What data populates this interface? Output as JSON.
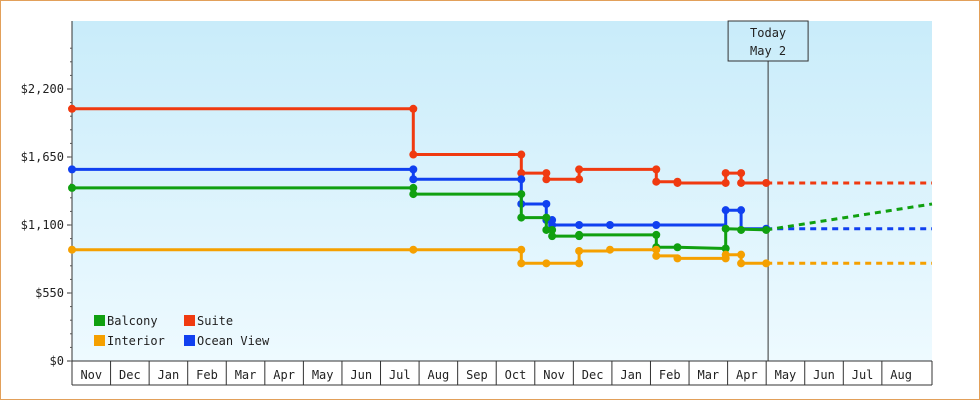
{
  "chart_data": {
    "type": "line",
    "title": "",
    "xlabel": "",
    "ylabel": "",
    "ylim": [
      0,
      2750
    ],
    "y_ticks": [
      0,
      550,
      1100,
      1650,
      2200
    ],
    "y_tick_labels": [
      "$0",
      "$550",
      "$1,100",
      "$1,650",
      "$2,200"
    ],
    "x_domain": [
      0,
      22.3
    ],
    "month_labels": [
      "Nov",
      "Dec",
      "Jan",
      "Feb",
      "Mar",
      "Apr",
      "May",
      "Jun",
      "Jul",
      "Aug",
      "Sep",
      "Oct",
      "Nov",
      "Dec",
      "Jan",
      "Feb",
      "Mar",
      "Apr",
      "May",
      "Jun",
      "Jul",
      "Aug"
    ],
    "today": {
      "line1": "Today",
      "line2": "May 2",
      "x": 18.05
    },
    "background_gradient": [
      "#c9ecfa",
      "#eefaff"
    ],
    "legend_position": "bottom-left",
    "series": [
      {
        "name": "Suite",
        "color": "#f03a10",
        "points": [
          [
            0.0,
            2040
          ],
          [
            8.85,
            2040
          ],
          [
            8.85,
            1670
          ],
          [
            11.65,
            1670
          ],
          [
            11.65,
            1520
          ],
          [
            12.3,
            1520
          ],
          [
            12.3,
            1470
          ],
          [
            13.15,
            1470
          ],
          [
            13.15,
            1550
          ],
          [
            15.15,
            1550
          ],
          [
            15.15,
            1450
          ],
          [
            15.7,
            1450
          ],
          [
            15.7,
            1440
          ],
          [
            16.95,
            1440
          ],
          [
            16.95,
            1520
          ],
          [
            17.35,
            1520
          ],
          [
            17.35,
            1440
          ],
          [
            18.0,
            1440
          ]
        ],
        "markers": [
          [
            0.0,
            2040
          ],
          [
            8.85,
            2040
          ],
          [
            8.85,
            1670
          ],
          [
            11.65,
            1670
          ],
          [
            11.65,
            1520
          ],
          [
            12.3,
            1520
          ],
          [
            12.3,
            1470
          ],
          [
            13.15,
            1470
          ],
          [
            13.15,
            1550
          ],
          [
            15.15,
            1550
          ],
          [
            15.15,
            1450
          ],
          [
            15.7,
            1450
          ],
          [
            15.7,
            1440
          ],
          [
            16.95,
            1440
          ],
          [
            16.95,
            1520
          ],
          [
            17.35,
            1520
          ],
          [
            17.35,
            1440
          ],
          [
            18.0,
            1440
          ]
        ],
        "projection": [
          [
            18.0,
            1440
          ],
          [
            22.3,
            1440
          ]
        ]
      },
      {
        "name": "Ocean View",
        "color": "#1040f0",
        "points": [
          [
            0.0,
            1550
          ],
          [
            8.85,
            1550
          ],
          [
            8.85,
            1470
          ],
          [
            11.65,
            1470
          ],
          [
            11.65,
            1270
          ],
          [
            12.3,
            1270
          ],
          [
            12.3,
            1140
          ],
          [
            12.45,
            1140
          ],
          [
            12.45,
            1100
          ],
          [
            15.15,
            1100
          ],
          [
            15.15,
            1100
          ],
          [
            16.95,
            1100
          ],
          [
            16.95,
            1220
          ],
          [
            17.35,
            1220
          ],
          [
            17.35,
            1070
          ],
          [
            18.0,
            1070
          ]
        ],
        "markers": [
          [
            0.0,
            1550
          ],
          [
            8.85,
            1550
          ],
          [
            8.85,
            1470
          ],
          [
            11.65,
            1470
          ],
          [
            11.65,
            1270
          ],
          [
            12.3,
            1270
          ],
          [
            12.3,
            1140
          ],
          [
            12.45,
            1140
          ],
          [
            12.45,
            1100
          ],
          [
            13.15,
            1100
          ],
          [
            13.95,
            1100
          ],
          [
            15.15,
            1100
          ],
          [
            16.95,
            1220
          ],
          [
            17.35,
            1220
          ],
          [
            18.0,
            1070
          ]
        ],
        "projection": [
          [
            18.0,
            1070
          ],
          [
            22.3,
            1070
          ]
        ]
      },
      {
        "name": "Balcony",
        "color": "#10a010",
        "points": [
          [
            0.0,
            1400
          ],
          [
            8.85,
            1400
          ],
          [
            8.85,
            1350
          ],
          [
            11.65,
            1350
          ],
          [
            11.65,
            1160
          ],
          [
            12.3,
            1160
          ],
          [
            12.3,
            1060
          ],
          [
            12.45,
            1060
          ],
          [
            12.45,
            1010
          ],
          [
            13.15,
            1010
          ],
          [
            13.15,
            1020
          ],
          [
            15.15,
            1020
          ],
          [
            15.15,
            920
          ],
          [
            15.7,
            920
          ],
          [
            15.7,
            920
          ],
          [
            16.95,
            910
          ],
          [
            16.95,
            1070
          ],
          [
            18.0,
            1060
          ]
        ],
        "markers": [
          [
            0.0,
            1400
          ],
          [
            8.85,
            1400
          ],
          [
            8.85,
            1350
          ],
          [
            11.65,
            1350
          ],
          [
            11.65,
            1160
          ],
          [
            12.3,
            1160
          ],
          [
            12.3,
            1060
          ],
          [
            12.45,
            1060
          ],
          [
            12.45,
            1010
          ],
          [
            13.15,
            1010
          ],
          [
            13.15,
            1020
          ],
          [
            15.15,
            1020
          ],
          [
            15.15,
            920
          ],
          [
            15.7,
            920
          ],
          [
            16.95,
            910
          ],
          [
            16.95,
            1070
          ],
          [
            17.35,
            1060
          ],
          [
            18.0,
            1060
          ]
        ],
        "projection": [
          [
            18.0,
            1060
          ],
          [
            22.3,
            1270
          ]
        ]
      },
      {
        "name": "Interior",
        "color": "#f5a000",
        "points": [
          [
            0.0,
            900
          ],
          [
            8.85,
            900
          ],
          [
            11.65,
            900
          ],
          [
            11.65,
            790
          ],
          [
            13.15,
            790
          ],
          [
            13.15,
            890
          ],
          [
            13.95,
            890
          ],
          [
            13.95,
            900
          ],
          [
            15.15,
            900
          ],
          [
            15.15,
            850
          ],
          [
            15.7,
            850
          ],
          [
            15.7,
            830
          ],
          [
            16.95,
            830
          ],
          [
            16.95,
            860
          ],
          [
            17.35,
            860
          ],
          [
            17.35,
            790
          ],
          [
            18.0,
            790
          ]
        ],
        "markers": [
          [
            0.0,
            900
          ],
          [
            8.85,
            900
          ],
          [
            11.65,
            900
          ],
          [
            11.65,
            790
          ],
          [
            12.3,
            790
          ],
          [
            13.15,
            790
          ],
          [
            13.15,
            890
          ],
          [
            13.95,
            900
          ],
          [
            15.15,
            900
          ],
          [
            15.15,
            850
          ],
          [
            15.7,
            830
          ],
          [
            16.95,
            830
          ],
          [
            16.95,
            860
          ],
          [
            17.35,
            860
          ],
          [
            17.35,
            790
          ],
          [
            18.0,
            790
          ]
        ],
        "projection": [
          [
            18.0,
            790
          ],
          [
            22.3,
            790
          ]
        ]
      }
    ],
    "legend": [
      {
        "name": "Balcony",
        "color": "#10a010"
      },
      {
        "name": "Suite",
        "color": "#f03a10"
      },
      {
        "name": "Interior",
        "color": "#f5a000"
      },
      {
        "name": "Ocean View",
        "color": "#1040f0"
      }
    ]
  }
}
